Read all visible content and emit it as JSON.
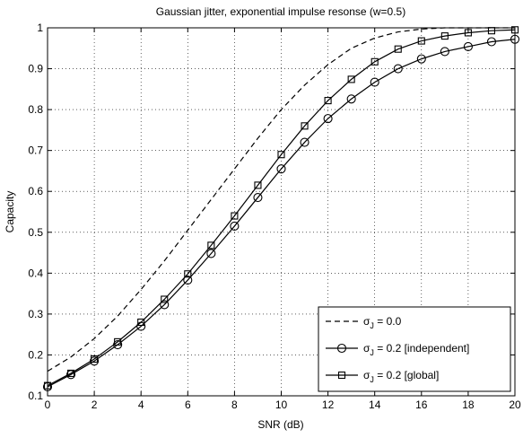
{
  "chart_data": {
    "type": "line",
    "title": "Gaussian jitter, exponential impulse resonse (w=0.5)",
    "xlabel": "SNR (dB)",
    "ylabel": "Capacity",
    "xlim": [
      0,
      20
    ],
    "ylim": [
      0.1,
      1.0
    ],
    "xticks": [
      0,
      2,
      4,
      6,
      8,
      10,
      12,
      14,
      16,
      18,
      20
    ],
    "yticks": [
      0.1,
      0.2,
      0.3,
      0.4,
      0.5,
      0.6,
      0.7,
      0.8,
      0.9,
      1.0
    ],
    "ytick_labels": [
      "0.1",
      "0.2",
      "0.3",
      "0.4",
      "0.5",
      "0.6",
      "0.7",
      "0.8",
      "0.9",
      "1"
    ],
    "grid": true,
    "legend_position": "bottom-right",
    "series": [
      {
        "legend_sigma": "σ",
        "legend_sub": "J",
        "legend_rest": " = 0.0",
        "line_style": "dashed",
        "marker": "none",
        "color": "#000000",
        "x": [
          0,
          1,
          2,
          3,
          4,
          5,
          6,
          7,
          8,
          9,
          10,
          11,
          12,
          13,
          14,
          15,
          16,
          17,
          18,
          19,
          20
        ],
        "y": [
          0.16,
          0.195,
          0.24,
          0.295,
          0.36,
          0.43,
          0.505,
          0.58,
          0.655,
          0.73,
          0.8,
          0.86,
          0.91,
          0.95,
          0.975,
          0.99,
          0.997,
          1.0,
          1.0,
          1.0,
          1.0
        ]
      },
      {
        "legend_sigma": "σ",
        "legend_sub": "J",
        "legend_rest": " = 0.2 [independent]",
        "line_style": "solid",
        "marker": "circle",
        "color": "#000000",
        "x": [
          0,
          1,
          2,
          3,
          4,
          5,
          6,
          7,
          8,
          9,
          10,
          11,
          12,
          13,
          14,
          15,
          16,
          17,
          18,
          19,
          20
        ],
        "y": [
          0.122,
          0.152,
          0.185,
          0.225,
          0.27,
          0.323,
          0.383,
          0.448,
          0.515,
          0.585,
          0.655,
          0.72,
          0.778,
          0.826,
          0.867,
          0.9,
          0.924,
          0.942,
          0.954,
          0.966,
          0.972
        ]
      },
      {
        "legend_sigma": "σ",
        "legend_sub": "J",
        "legend_rest": " = 0.2 [global]",
        "line_style": "solid",
        "marker": "square",
        "color": "#000000",
        "x": [
          0,
          1,
          2,
          3,
          4,
          5,
          6,
          7,
          8,
          9,
          10,
          11,
          12,
          13,
          14,
          15,
          16,
          17,
          18,
          19,
          20
        ],
        "y": [
          0.125,
          0.155,
          0.19,
          0.232,
          0.28,
          0.336,
          0.398,
          0.468,
          0.54,
          0.615,
          0.69,
          0.76,
          0.822,
          0.874,
          0.917,
          0.948,
          0.968,
          0.98,
          0.988,
          0.993,
          0.995
        ]
      }
    ]
  }
}
